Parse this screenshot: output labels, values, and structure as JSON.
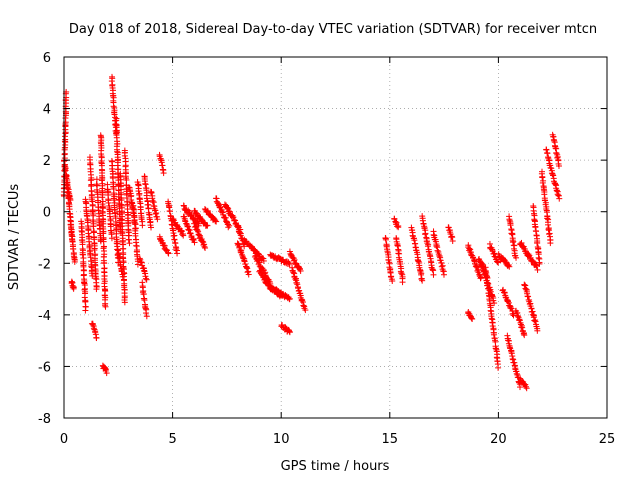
{
  "chart_data": {
    "type": "scatter",
    "title": "Day 018 of 2018, Sidereal Day-to-day VTEC variation (SDTVAR) for receiver mtcn",
    "xlabel": "GPS time / hours",
    "ylabel": "SDTVAR / TECUs",
    "xlim": [
      0,
      25
    ],
    "ylim": [
      -8,
      6
    ],
    "xticks": [
      0,
      5,
      10,
      15,
      20,
      25
    ],
    "yticks": [
      -8,
      -6,
      -4,
      -2,
      0,
      2,
      4,
      6
    ],
    "grid": true,
    "marker": "+",
    "series_color": "#ff0000",
    "series": [
      {
        "name": "SDTVAR",
        "segments": [
          {
            "x_start": 0.0,
            "x_end": 0.1,
            "y_start": 0.6,
            "y_end": 4.6
          },
          {
            "x_start": 0.0,
            "x_end": 0.3,
            "y_start": 2.0,
            "y_end": 0.4
          },
          {
            "x_start": 0.1,
            "x_end": 0.4,
            "y_start": 1.4,
            "y_end": -1.2
          },
          {
            "x_start": 0.3,
            "x_end": 0.5,
            "y_start": -0.4,
            "y_end": -2.0
          },
          {
            "x_start": 0.35,
            "x_end": 0.45,
            "y_start": -2.7,
            "y_end": -3.0
          },
          {
            "x_start": 0.8,
            "x_end": 1.0,
            "y_start": -0.4,
            "y_end": -3.8
          },
          {
            "x_start": 1.0,
            "x_end": 1.3,
            "y_start": 0.5,
            "y_end": -2.5
          },
          {
            "x_start": 1.2,
            "x_end": 1.5,
            "y_start": 2.1,
            "y_end": -3.0
          },
          {
            "x_start": 1.3,
            "x_end": 1.5,
            "y_start": -4.3,
            "y_end": -4.9
          },
          {
            "x_start": 1.5,
            "x_end": 1.7,
            "y_start": 1.2,
            "y_end": -1.2
          },
          {
            "x_start": 1.7,
            "x_end": 1.9,
            "y_start": 3.0,
            "y_end": -3.7
          },
          {
            "x_start": 1.8,
            "x_end": 1.95,
            "y_start": -6.0,
            "y_end": -6.2
          },
          {
            "x_start": 2.0,
            "x_end": 2.2,
            "y_start": 1.0,
            "y_end": -1.0
          },
          {
            "x_start": 2.2,
            "x_end": 2.4,
            "y_start": 5.2,
            "y_end": 3.0
          },
          {
            "x_start": 2.2,
            "x_end": 2.5,
            "y_start": 2.0,
            "y_end": -2.0
          },
          {
            "x_start": 2.4,
            "x_end": 2.6,
            "y_start": 3.6,
            "y_end": -0.8
          },
          {
            "x_start": 2.5,
            "x_end": 2.7,
            "y_start": -1.5,
            "y_end": -2.5
          },
          {
            "x_start": 2.6,
            "x_end": 2.8,
            "y_start": 1.5,
            "y_end": -3.5
          },
          {
            "x_start": 2.8,
            "x_end": 3.0,
            "y_start": 2.4,
            "y_end": -1.2
          },
          {
            "x_start": 3.0,
            "x_end": 3.3,
            "y_start": 1.0,
            "y_end": -0.6
          },
          {
            "x_start": 3.2,
            "x_end": 3.4,
            "y_start": 0.2,
            "y_end": -2.0
          },
          {
            "x_start": 3.4,
            "x_end": 3.6,
            "y_start": 1.2,
            "y_end": -0.5
          },
          {
            "x_start": 3.5,
            "x_end": 3.8,
            "y_start": -1.8,
            "y_end": -2.6
          },
          {
            "x_start": 3.6,
            "x_end": 3.8,
            "y_start": -2.8,
            "y_end": -4.0
          },
          {
            "x_start": 3.7,
            "x_end": 4.0,
            "y_start": 1.4,
            "y_end": -0.6
          },
          {
            "x_start": 4.0,
            "x_end": 4.3,
            "y_start": 0.8,
            "y_end": -0.3
          },
          {
            "x_start": 4.4,
            "x_end": 4.6,
            "y_start": 2.2,
            "y_end": 1.5
          },
          {
            "x_start": 4.4,
            "x_end": 4.8,
            "y_start": -1.0,
            "y_end": -1.6
          },
          {
            "x_start": 4.8,
            "x_end": 5.2,
            "y_start": 0.4,
            "y_end": -1.6
          },
          {
            "x_start": 5.0,
            "x_end": 5.5,
            "y_start": -0.3,
            "y_end": -0.9
          },
          {
            "x_start": 5.5,
            "x_end": 6.0,
            "y_start": -0.2,
            "y_end": -1.2
          },
          {
            "x_start": 5.5,
            "x_end": 6.2,
            "y_start": 0.2,
            "y_end": -0.5
          },
          {
            "x_start": 6.0,
            "x_end": 6.5,
            "y_start": -0.5,
            "y_end": -1.4
          },
          {
            "x_start": 6.0,
            "x_end": 6.6,
            "y_start": 0.0,
            "y_end": -0.6
          },
          {
            "x_start": 6.5,
            "x_end": 7.0,
            "y_start": 0.1,
            "y_end": -0.4
          },
          {
            "x_start": 7.0,
            "x_end": 7.6,
            "y_start": 0.5,
            "y_end": -0.6
          },
          {
            "x_start": 7.4,
            "x_end": 8.1,
            "y_start": 0.3,
            "y_end": -0.7
          },
          {
            "x_start": 8.0,
            "x_end": 8.3,
            "y_start": -0.6,
            "y_end": -1.3
          },
          {
            "x_start": 8.0,
            "x_end": 8.5,
            "y_start": -1.2,
            "y_end": -2.4
          },
          {
            "x_start": 8.3,
            "x_end": 9.2,
            "y_start": -1.1,
            "y_end": -1.9
          },
          {
            "x_start": 8.8,
            "x_end": 9.5,
            "y_start": -1.7,
            "y_end": -2.8
          },
          {
            "x_start": 9.0,
            "x_end": 9.6,
            "y_start": -2.3,
            "y_end": -3.1
          },
          {
            "x_start": 9.5,
            "x_end": 10.4,
            "y_start": -1.7,
            "y_end": -2.0
          },
          {
            "x_start": 9.5,
            "x_end": 10.4,
            "y_start": -2.9,
            "y_end": -3.4
          },
          {
            "x_start": 9.6,
            "x_end": 10.0,
            "y_start": -3.0,
            "y_end": -3.3
          },
          {
            "x_start": 10.0,
            "x_end": 10.4,
            "y_start": -4.4,
            "y_end": -4.7
          },
          {
            "x_start": 10.4,
            "x_end": 10.9,
            "y_start": -1.6,
            "y_end": -2.3
          },
          {
            "x_start": 10.5,
            "x_end": 11.1,
            "y_start": -2.2,
            "y_end": -3.8
          },
          {
            "x_start": 14.8,
            "x_end": 15.1,
            "y_start": -1.0,
            "y_end": -2.7
          },
          {
            "x_start": 15.2,
            "x_end": 15.4,
            "y_start": -0.3,
            "y_end": -0.6
          },
          {
            "x_start": 15.3,
            "x_end": 15.6,
            "y_start": -1.0,
            "y_end": -2.7
          },
          {
            "x_start": 16.0,
            "x_end": 16.5,
            "y_start": -0.6,
            "y_end": -2.7
          },
          {
            "x_start": 16.5,
            "x_end": 17.0,
            "y_start": -0.2,
            "y_end": -2.4
          },
          {
            "x_start": 17.0,
            "x_end": 17.5,
            "y_start": -0.8,
            "y_end": -2.4
          },
          {
            "x_start": 17.7,
            "x_end": 17.9,
            "y_start": -0.6,
            "y_end": -1.1
          },
          {
            "x_start": 18.6,
            "x_end": 18.8,
            "y_start": -3.9,
            "y_end": -4.2
          },
          {
            "x_start": 18.6,
            "x_end": 19.2,
            "y_start": -1.3,
            "y_end": -2.6
          },
          {
            "x_start": 19.1,
            "x_end": 19.5,
            "y_start": -1.8,
            "y_end": -2.6
          },
          {
            "x_start": 19.2,
            "x_end": 19.8,
            "y_start": -2.0,
            "y_end": -3.5
          },
          {
            "x_start": 19.4,
            "x_end": 20.0,
            "y_start": -2.2,
            "y_end": -6.0
          },
          {
            "x_start": 19.6,
            "x_end": 20.0,
            "y_start": -1.3,
            "y_end": -2.0
          },
          {
            "x_start": 20.0,
            "x_end": 20.5,
            "y_start": -1.7,
            "y_end": -2.1
          },
          {
            "x_start": 20.2,
            "x_end": 20.7,
            "y_start": -3.0,
            "y_end": -4.0
          },
          {
            "x_start": 20.4,
            "x_end": 21.0,
            "y_start": -4.8,
            "y_end": -6.8
          },
          {
            "x_start": 20.5,
            "x_end": 20.8,
            "y_start": -0.2,
            "y_end": -1.8
          },
          {
            "x_start": 20.8,
            "x_end": 21.2,
            "y_start": -3.8,
            "y_end": -4.8
          },
          {
            "x_start": 21.0,
            "x_end": 21.3,
            "y_start": -6.5,
            "y_end": -6.8
          },
          {
            "x_start": 21.0,
            "x_end": 21.8,
            "y_start": -1.2,
            "y_end": -2.2
          },
          {
            "x_start": 21.2,
            "x_end": 21.8,
            "y_start": -2.8,
            "y_end": -4.6
          },
          {
            "x_start": 21.6,
            "x_end": 21.9,
            "y_start": 0.2,
            "y_end": -2.0
          },
          {
            "x_start": 22.0,
            "x_end": 22.4,
            "y_start": 1.5,
            "y_end": -1.2
          },
          {
            "x_start": 22.2,
            "x_end": 22.8,
            "y_start": 2.4,
            "y_end": 0.5
          },
          {
            "x_start": 22.5,
            "x_end": 22.8,
            "y_start": 3.0,
            "y_end": 1.8
          }
        ]
      }
    ]
  }
}
